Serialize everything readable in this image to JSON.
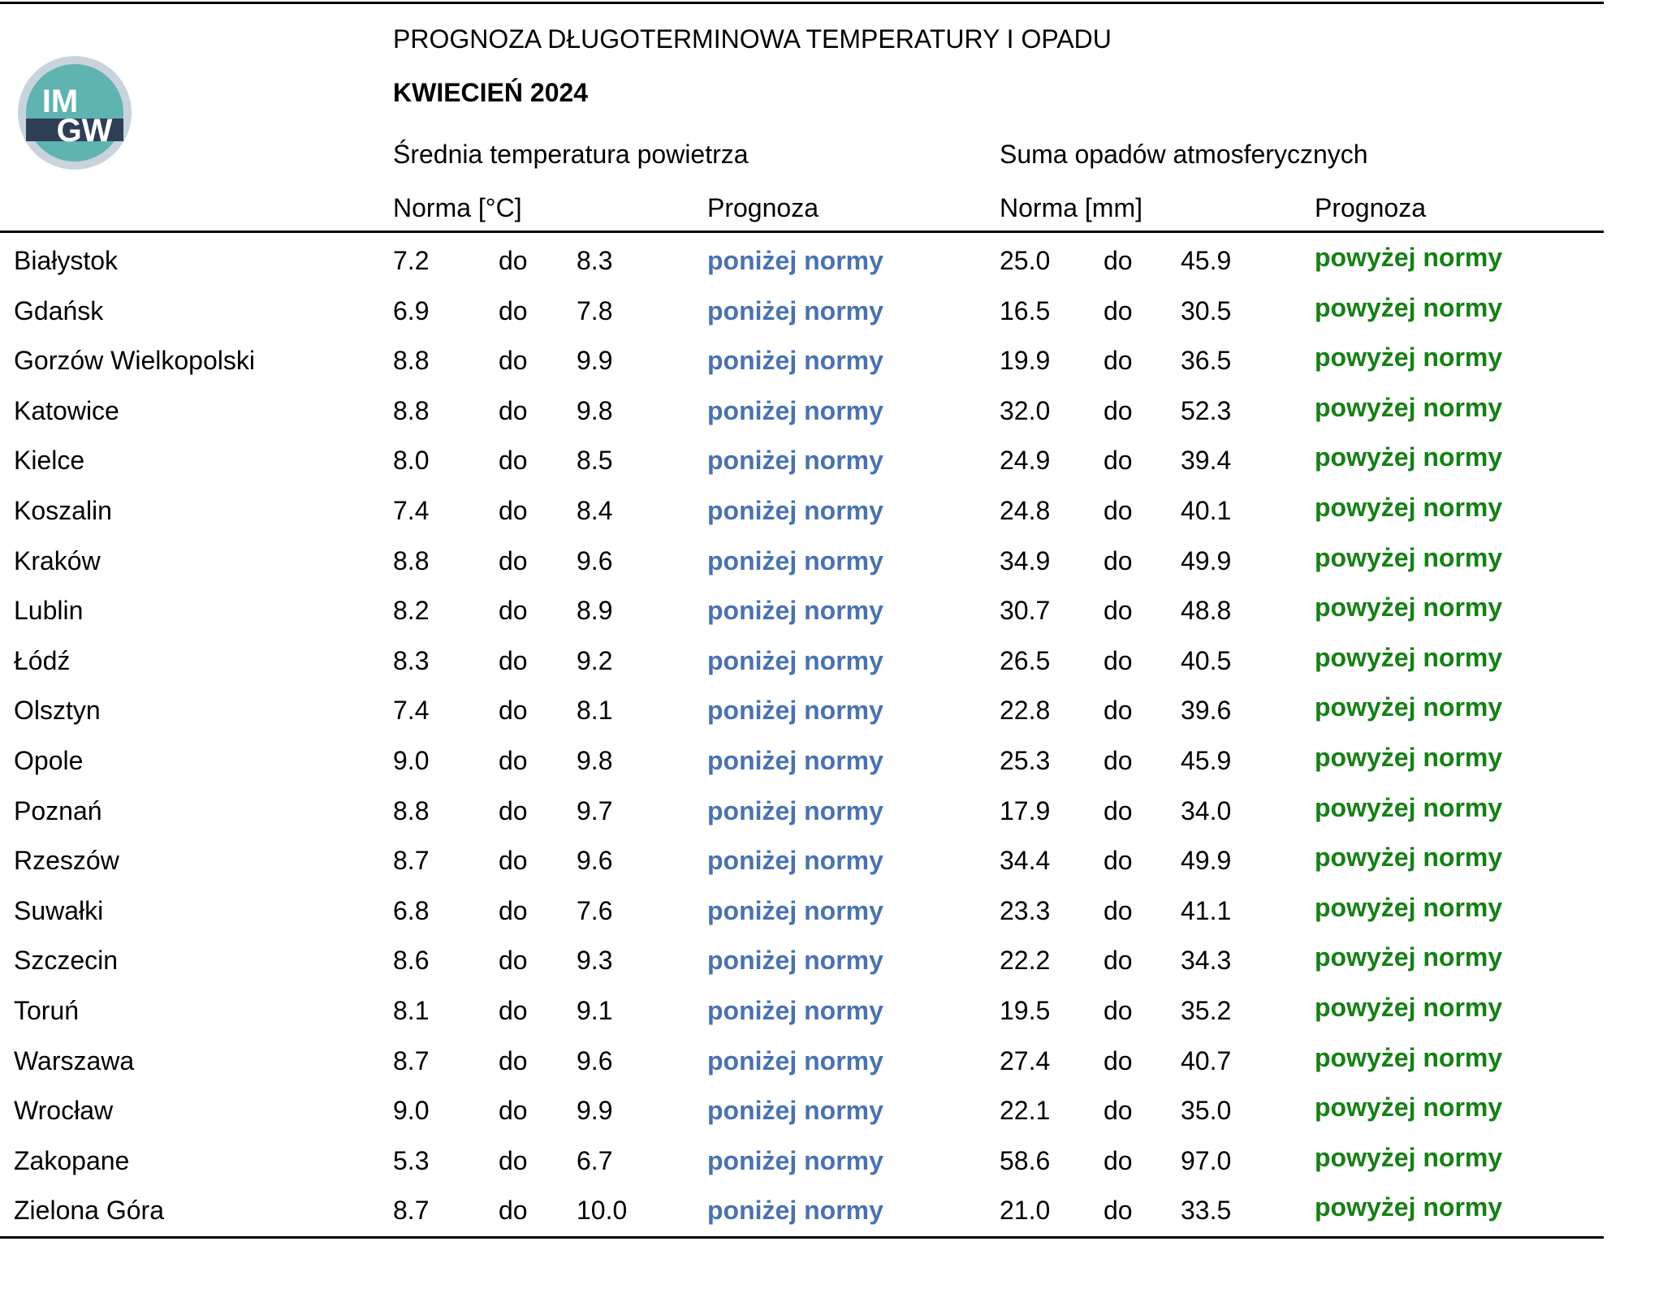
{
  "logo": {
    "line1": "IM",
    "line2": "GW"
  },
  "header": {
    "title": "PROGNOZA DŁUGOTERMINOWA TEMPERATURY I OPADU",
    "subtitle": "KWIECIEŃ 2024",
    "section_temp": "Średnia temperatura powietrza",
    "section_precip": "Suma opadów atmosferycznych"
  },
  "table": {
    "columns": [
      "Norma [°C]",
      "Prognoza",
      "Norma [mm]",
      "Prognoza"
    ],
    "rows": [
      [
        "Białystok",
        "7.2",
        "do",
        "8.3",
        "poniżej normy",
        "25.0",
        "do",
        "45.9",
        "powyżej normy"
      ],
      [
        "Gdańsk",
        "6.9",
        "do",
        "7.8",
        "poniżej normy",
        "16.5",
        "do",
        "30.5",
        "powyżej normy"
      ],
      [
        "Gorzów Wielkopolski",
        "8.8",
        "do",
        "9.9",
        "poniżej normy",
        "19.9",
        "do",
        "36.5",
        "powyżej normy"
      ],
      [
        "Katowice",
        "8.8",
        "do",
        "9.8",
        "poniżej normy",
        "32.0",
        "do",
        "52.3",
        "powyżej normy"
      ],
      [
        "Kielce",
        "8.0",
        "do",
        "8.5",
        "poniżej normy",
        "24.9",
        "do",
        "39.4",
        "powyżej normy"
      ],
      [
        "Koszalin",
        "7.4",
        "do",
        "8.4",
        "poniżej normy",
        "24.8",
        "do",
        "40.1",
        "powyżej normy"
      ],
      [
        "Kraków",
        "8.8",
        "do",
        "9.6",
        "poniżej normy",
        "34.9",
        "do",
        "49.9",
        "powyżej normy"
      ],
      [
        "Lublin",
        "8.2",
        "do",
        "8.9",
        "poniżej normy",
        "30.7",
        "do",
        "48.8",
        "powyżej normy"
      ],
      [
        "Łódź",
        "8.3",
        "do",
        "9.2",
        "poniżej normy",
        "26.5",
        "do",
        "40.5",
        "powyżej normy"
      ],
      [
        "Olsztyn",
        "7.4",
        "do",
        "8.1",
        "poniżej normy",
        "22.8",
        "do",
        "39.6",
        "powyżej normy"
      ],
      [
        "Opole",
        "9.0",
        "do",
        "9.8",
        "poniżej normy",
        "25.3",
        "do",
        "45.9",
        "powyżej normy"
      ],
      [
        "Poznań",
        "8.8",
        "do",
        "9.7",
        "poniżej normy",
        "17.9",
        "do",
        "34.0",
        "powyżej normy"
      ],
      [
        "Rzeszów",
        "8.7",
        "do",
        "9.6",
        "poniżej normy",
        "34.4",
        "do",
        "49.9",
        "powyżej normy"
      ],
      [
        "Suwałki",
        "6.8",
        "do",
        "7.6",
        "poniżej normy",
        "23.3",
        "do",
        "41.1",
        "powyżej normy"
      ],
      [
        "Szczecin",
        "8.6",
        "do",
        "9.3",
        "poniżej normy",
        "22.2",
        "do",
        "34.3",
        "powyżej normy"
      ],
      [
        "Toruń",
        "8.1",
        "do",
        "9.1",
        "poniżej normy",
        "19.5",
        "do",
        "35.2",
        "powyżej normy"
      ],
      [
        "Warszawa",
        "8.7",
        "do",
        "9.6",
        "poniżej normy",
        "27.4",
        "do",
        "40.7",
        "powyżej normy"
      ],
      [
        "Wrocław",
        "9.0",
        "do",
        "9.9",
        "poniżej normy",
        "22.1",
        "do",
        "35.0",
        "powyżej normy"
      ],
      [
        "Zakopane",
        "5.3",
        "do",
        "6.7",
        "poniżej normy",
        "58.6",
        "do",
        "97.0",
        "powyżej normy"
      ],
      [
        "Zielona Góra",
        "8.7",
        "do",
        "10.0",
        "poniżej normy",
        "21.0",
        "do",
        "33.5",
        "powyżej normy"
      ]
    ]
  }
}
